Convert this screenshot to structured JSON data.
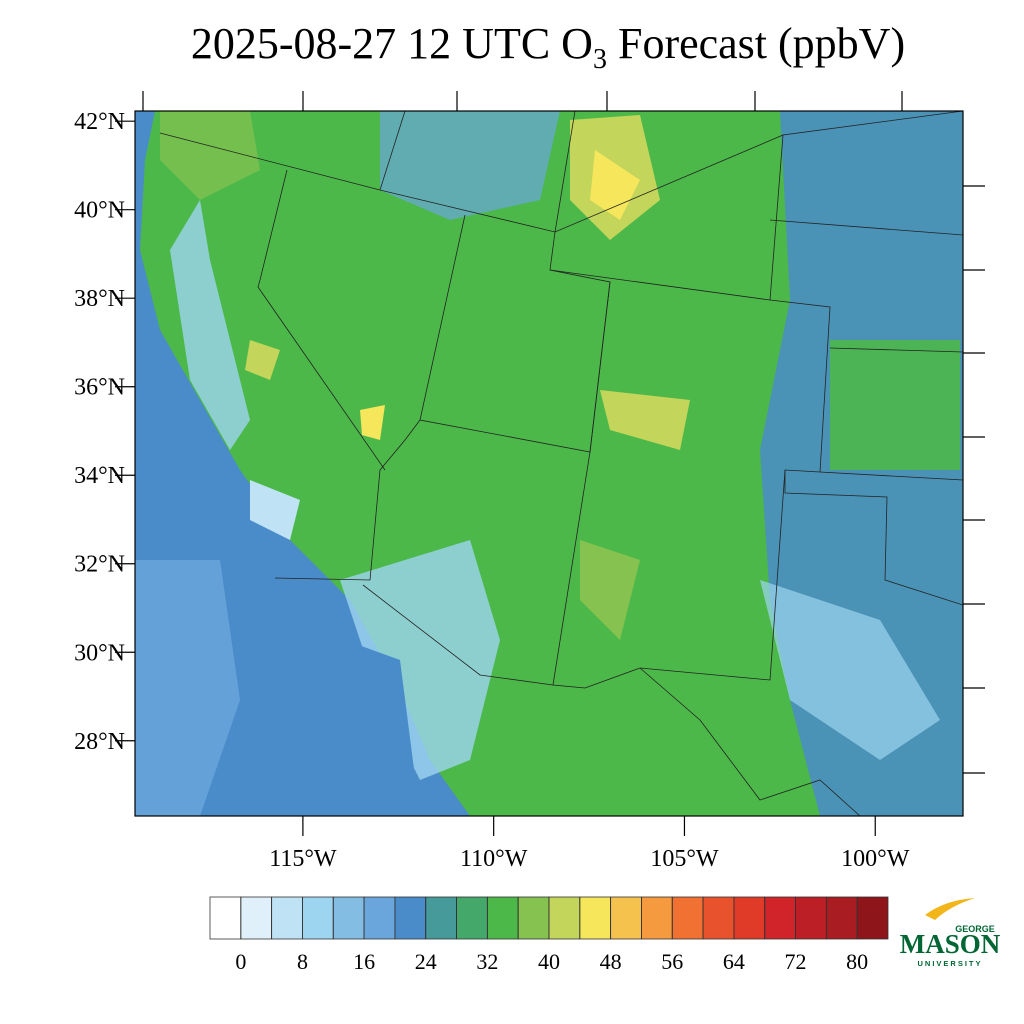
{
  "chart_data": {
    "type": "contour-map",
    "title": {
      "before": "2025-08-27 12 UTC O",
      "subscript": "3",
      "after": " Forecast (ppbV)"
    },
    "ylim": [
      26.3,
      42.23
    ],
    "yticks": [
      {
        "value": 28,
        "label": "28°N"
      },
      {
        "value": 30,
        "label": "30°N"
      },
      {
        "value": 32,
        "label": "32°N"
      },
      {
        "value": 34,
        "label": "34°N"
      },
      {
        "value": 36,
        "label": "36°N"
      },
      {
        "value": 38,
        "label": "38°N"
      },
      {
        "value": 40,
        "label": "40°N"
      },
      {
        "value": 42,
        "label": "42°N"
      }
    ],
    "xlim": [
      -119.4,
      -97.7
    ],
    "xticks": [
      {
        "value": -115,
        "label": "115°W"
      },
      {
        "value": -110,
        "label": "110°W"
      },
      {
        "value": -105,
        "label": "105°W"
      },
      {
        "value": -100,
        "label": "100°W"
      }
    ],
    "colorbar": {
      "levels": [
        0,
        4,
        8,
        12,
        16,
        20,
        24,
        28,
        32,
        36,
        40,
        44,
        48,
        52,
        56,
        60,
        64,
        68,
        72,
        76,
        80
      ],
      "ticks": [
        0,
        8,
        16,
        24,
        32,
        40,
        48,
        56,
        64,
        72,
        80
      ],
      "colors": [
        "#ffffff",
        "#dff0fa",
        "#bfe3f5",
        "#9dd4f0",
        "#83bde3",
        "#6aa6dc",
        "#4a8cc9",
        "#479a9a",
        "#44a86a",
        "#4cb84a",
        "#86c24f",
        "#c3d55a",
        "#f5e65c",
        "#f6c24e",
        "#f59a3e",
        "#f07132",
        "#e8522c",
        "#e03a28",
        "#d0232a",
        "#bd1f26",
        "#a81c22",
        "#8e1519"
      ]
    },
    "logo": {
      "top": "GEORGE",
      "main": "MASON",
      "bottom": "UNIVERSITY"
    }
  }
}
